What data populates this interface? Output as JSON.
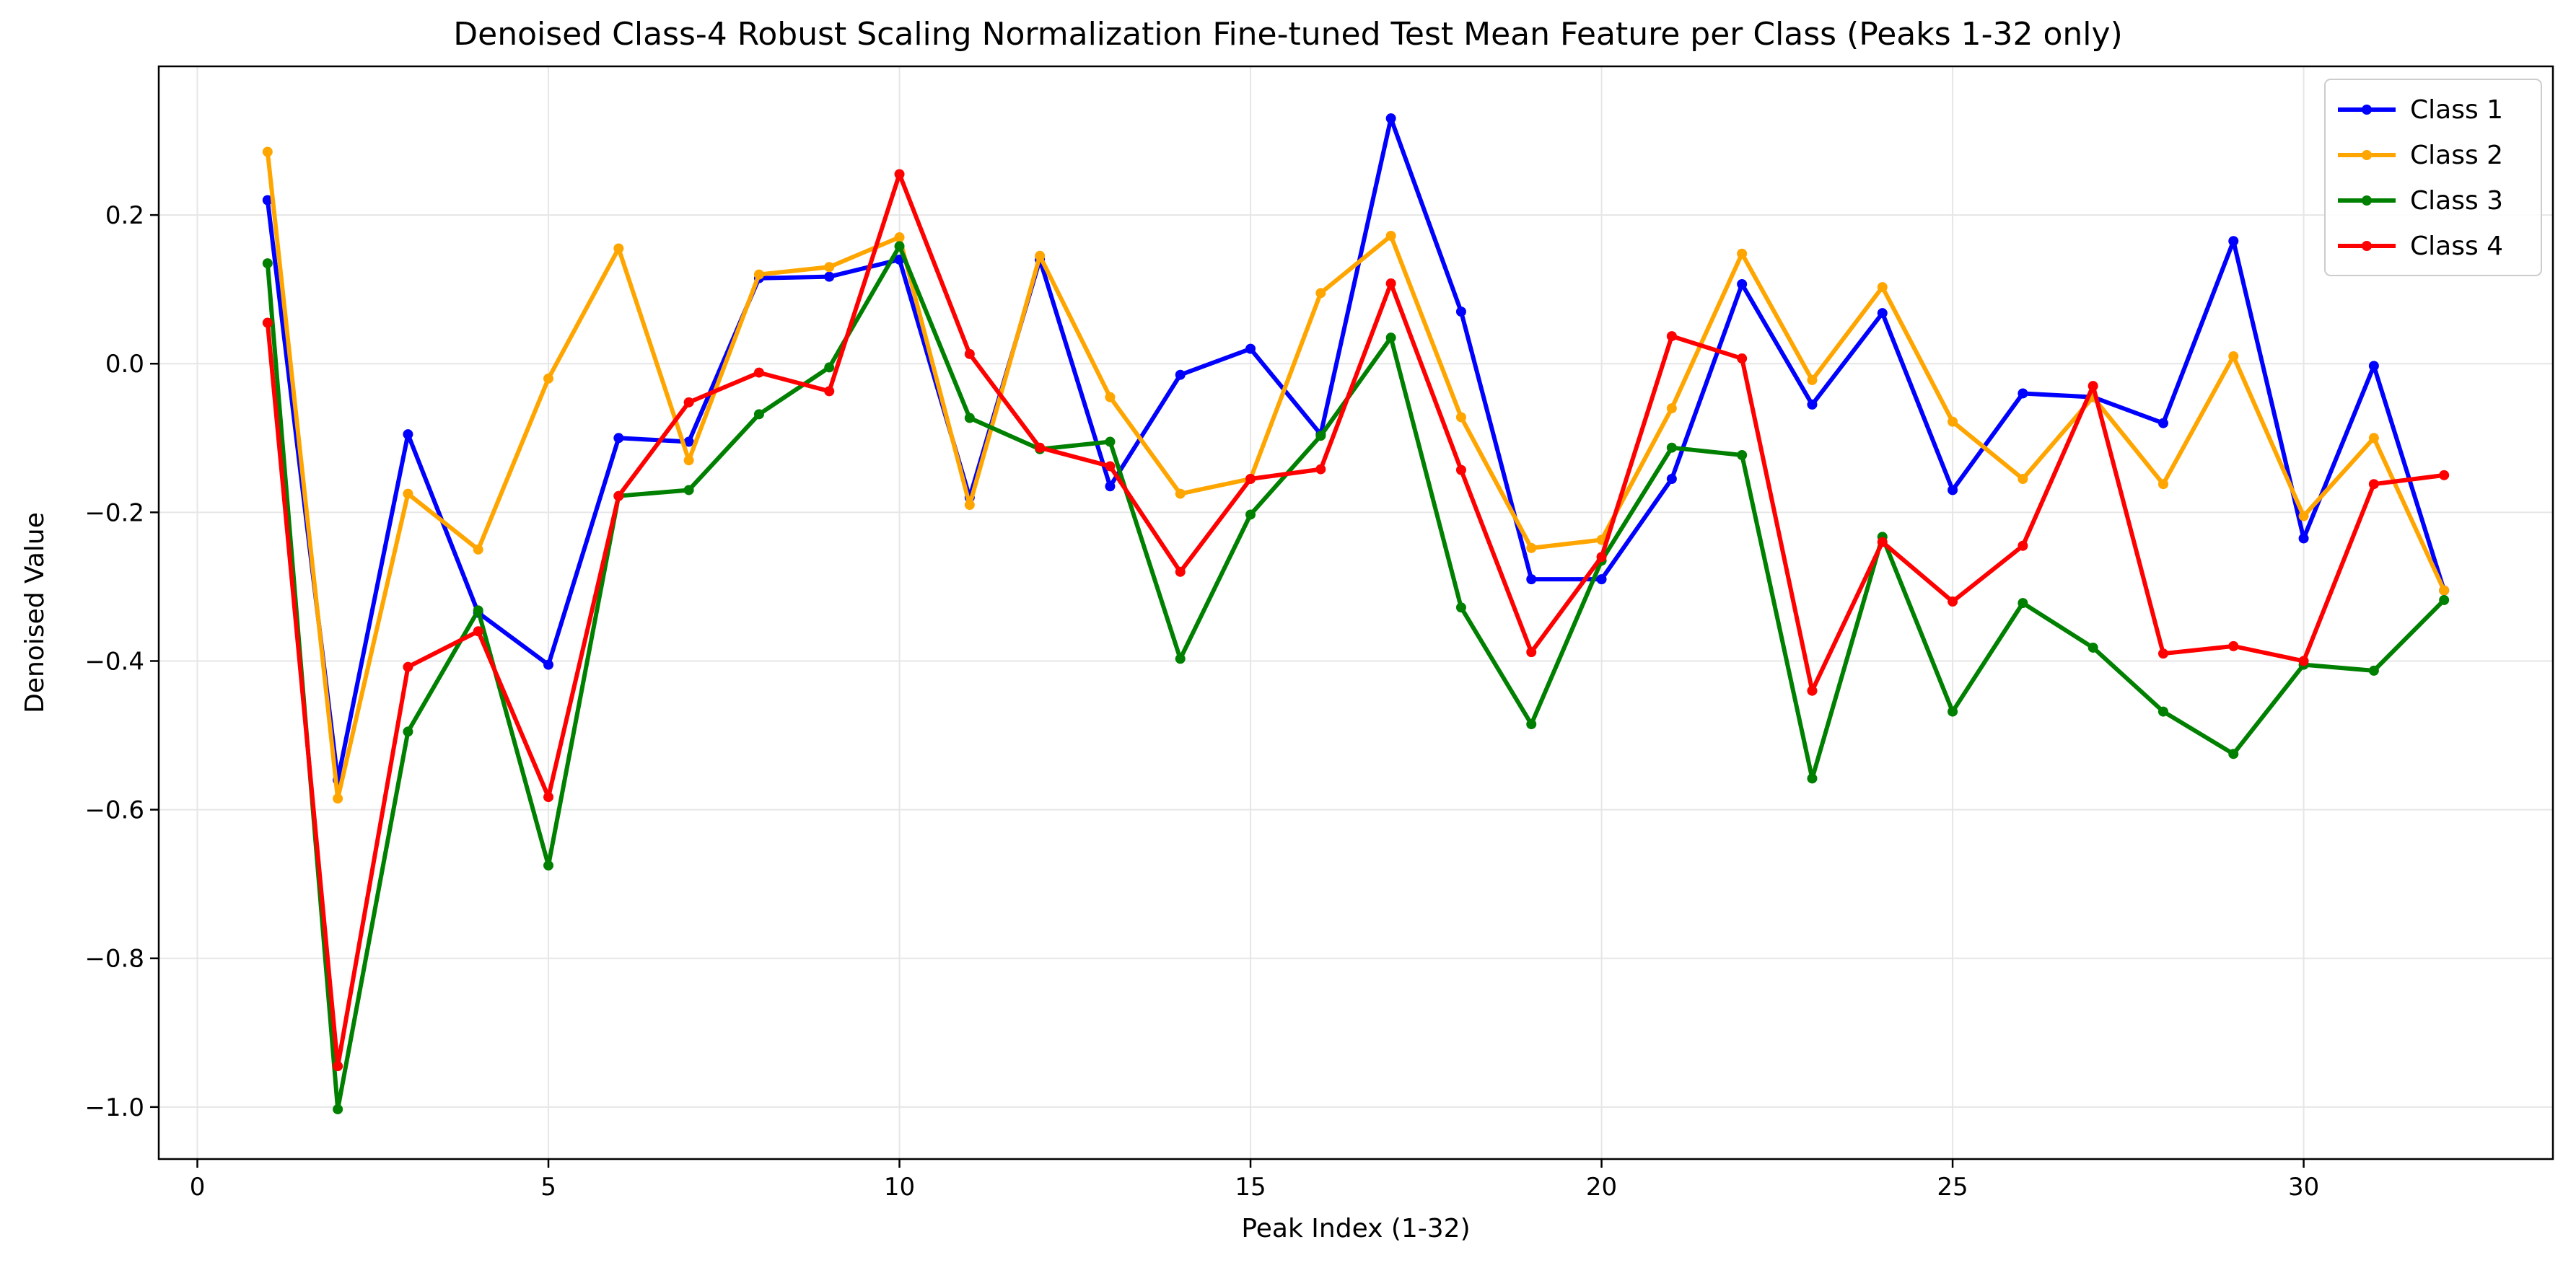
{
  "chart_data": {
    "type": "line",
    "title": "Denoised Class-4 Robust Scaling Normalization Fine-tuned Test Mean Feature per Class (Peaks 1-32 only)",
    "xlabel": "Peak Index (1-32)",
    "ylabel": "Denoised Value",
    "xlim": [
      -0.55,
      33.55
    ],
    "ylim": [
      -1.07,
      0.4
    ],
    "xticks": [
      0,
      5,
      10,
      15,
      20,
      25,
      30
    ],
    "yticks": [
      0.2,
      0.0,
      -0.2,
      -0.4,
      -0.6,
      -0.8,
      -1.0
    ],
    "ytick_labels": [
      "0.2",
      "0.0",
      "−0.2",
      "−0.4",
      "−0.6",
      "−0.8",
      "−1.0"
    ],
    "grid": true,
    "legend_position": "top-right",
    "x": [
      1,
      2,
      3,
      4,
      5,
      6,
      7,
      8,
      9,
      10,
      11,
      12,
      13,
      14,
      15,
      16,
      17,
      18,
      19,
      20,
      21,
      22,
      23,
      24,
      25,
      26,
      27,
      28,
      29,
      30,
      31,
      32
    ],
    "series": [
      {
        "name": "Class 1",
        "color": "#0000ff",
        "values": [
          0.22,
          -0.56,
          -0.095,
          -0.335,
          -0.405,
          -0.1,
          -0.105,
          0.115,
          0.117,
          0.14,
          -0.18,
          0.14,
          -0.165,
          -0.015,
          0.02,
          -0.095,
          0.33,
          0.07,
          -0.29,
          -0.29,
          -0.155,
          0.107,
          -0.055,
          0.068,
          -0.17,
          -0.04,
          -0.045,
          -0.08,
          0.165,
          -0.235,
          -0.003,
          -0.305
        ]
      },
      {
        "name": "Class 2",
        "color": "#ffa500",
        "values": [
          0.285,
          -0.585,
          -0.175,
          -0.25,
          -0.02,
          0.155,
          -0.13,
          0.12,
          0.13,
          0.17,
          -0.19,
          0.145,
          -0.045,
          -0.175,
          -0.155,
          0.095,
          0.172,
          -0.072,
          -0.248,
          -0.237,
          -0.06,
          0.148,
          -0.022,
          0.103,
          -0.078,
          -0.155,
          -0.045,
          -0.162,
          0.01,
          -0.205,
          -0.1,
          -0.305
        ]
      },
      {
        "name": "Class 3",
        "color": "#008000",
        "values": [
          0.135,
          -1.003,
          -0.495,
          -0.332,
          -0.675,
          -0.178,
          -0.17,
          -0.068,
          -0.005,
          0.158,
          -0.073,
          -0.115,
          -0.105,
          -0.397,
          -0.203,
          -0.097,
          0.035,
          -0.328,
          -0.485,
          -0.265,
          -0.113,
          -0.123,
          -0.558,
          -0.233,
          -0.468,
          -0.322,
          -0.382,
          -0.468,
          -0.525,
          -0.405,
          -0.413,
          -0.318
        ]
      },
      {
        "name": "Class 4",
        "color": "#ff0000",
        "values": [
          0.055,
          -0.945,
          -0.408,
          -0.36,
          -0.583,
          -0.178,
          -0.052,
          -0.012,
          -0.037,
          0.255,
          0.013,
          -0.113,
          -0.138,
          -0.28,
          -0.155,
          -0.142,
          0.108,
          -0.143,
          -0.388,
          -0.26,
          0.037,
          0.007,
          -0.44,
          -0.24,
          -0.32,
          -0.245,
          -0.03,
          -0.39,
          -0.38,
          -0.4,
          -0.162,
          -0.15
        ]
      }
    ]
  }
}
